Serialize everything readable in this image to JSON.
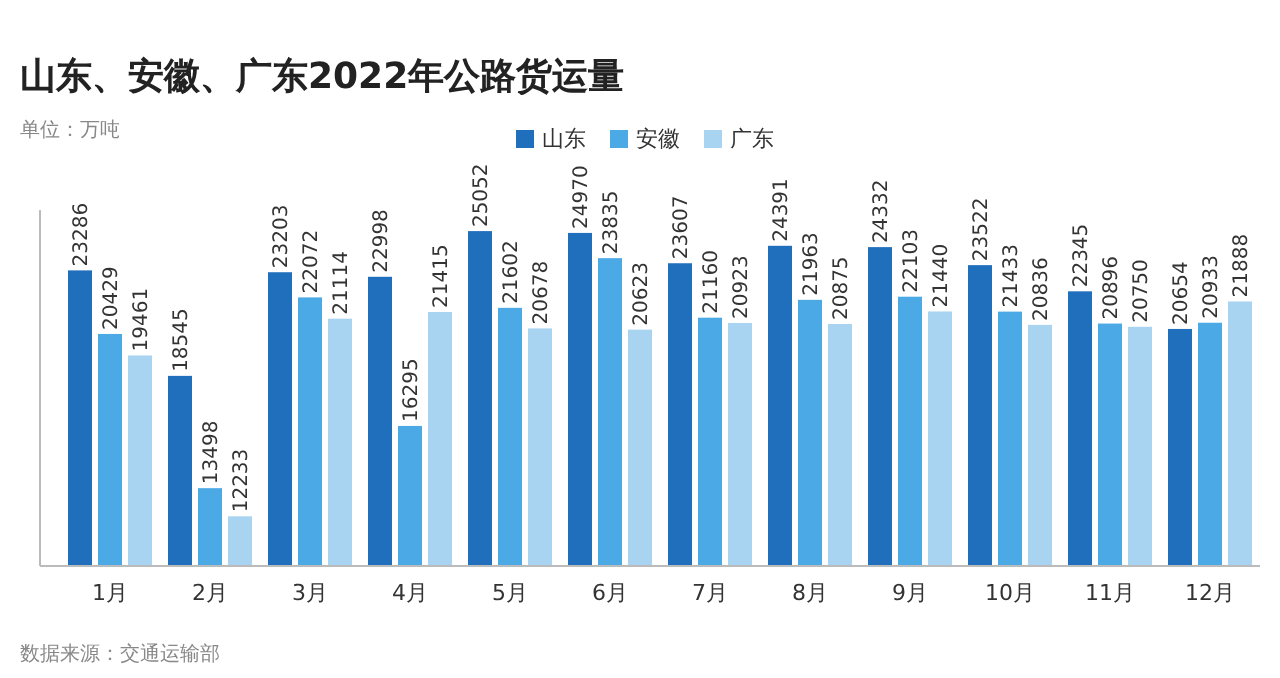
{
  "chart_data": {
    "type": "bar",
    "title": "山东、安徽、广东2022年公路货运量",
    "annotations": [
      "单位：万吨",
      "数据来源：交通运输部"
    ],
    "categories": [
      "1月",
      "2月",
      "3月",
      "4月",
      "5月",
      "6月",
      "7月",
      "8月",
      "9月",
      "10月",
      "11月",
      "12月"
    ],
    "series": [
      {
        "name": "山东",
        "color": "#1f6fbd",
        "values": [
          23286,
          18545,
          23203,
          22998,
          25052,
          24970,
          23607,
          24391,
          24332,
          23522,
          22345,
          20654
        ]
      },
      {
        "name": "安徽",
        "color": "#4ba9e6",
        "values": [
          20429,
          13498,
          22072,
          16295,
          21602,
          23835,
          21160,
          21963,
          22103,
          21433,
          20896,
          20933
        ]
      },
      {
        "name": "广东",
        "color": "#a8d3f1",
        "values": [
          19461,
          12233,
          21114,
          21415,
          20678,
          20623,
          20923,
          20875,
          21440,
          20836,
          20750,
          21888
        ]
      }
    ],
    "ylim": [
      10000,
      26000
    ],
    "data_labels": true,
    "legend": "top"
  }
}
